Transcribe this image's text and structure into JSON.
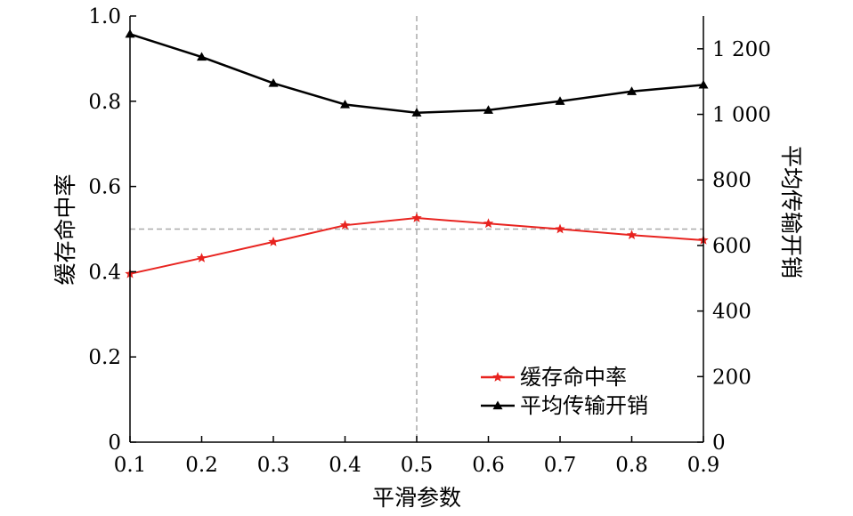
{
  "chart_data": {
    "type": "line",
    "xlabel": "平滑参数",
    "ylabel_left": "缓存命中率",
    "ylabel_right": "平均传输开销",
    "x": [
      0.1,
      0.2,
      0.3,
      0.4,
      0.5,
      0.6,
      0.7,
      0.8,
      0.9
    ],
    "x_ticks": [
      "0.1",
      "0.2",
      "0.3",
      "0.4",
      "0.5",
      "0.6",
      "0.7",
      "0.8",
      "0.9"
    ],
    "xlim": [
      0.1,
      0.9
    ],
    "ylim_left": [
      0,
      1.0
    ],
    "ylim_right": [
      0,
      1300
    ],
    "y_ticks_left": [
      "0",
      "0.2",
      "0.4",
      "0.6",
      "0.8",
      "1.0"
    ],
    "y_ticks_right": [
      "0",
      "200",
      "400",
      "600",
      "800",
      "1 000",
      "1 200"
    ],
    "series": [
      {
        "name": "缓存命中率",
        "axis": "left",
        "color": "#e8231f",
        "marker": "star",
        "values": [
          0.395,
          0.432,
          0.47,
          0.509,
          0.526,
          0.513,
          0.5,
          0.486,
          0.474
        ]
      },
      {
        "name": "平均传输开销",
        "axis": "right",
        "color": "#000000",
        "marker": "triangle",
        "values": [
          1245,
          1175,
          1095,
          1030,
          1005,
          1013,
          1040,
          1070,
          1090
        ]
      }
    ],
    "reference_lines": {
      "vertical_x": 0.5,
      "horizontal_left_y": 0.5,
      "color": "#aaaaaa"
    },
    "legend_position": "bottom-right",
    "grid": false
  }
}
